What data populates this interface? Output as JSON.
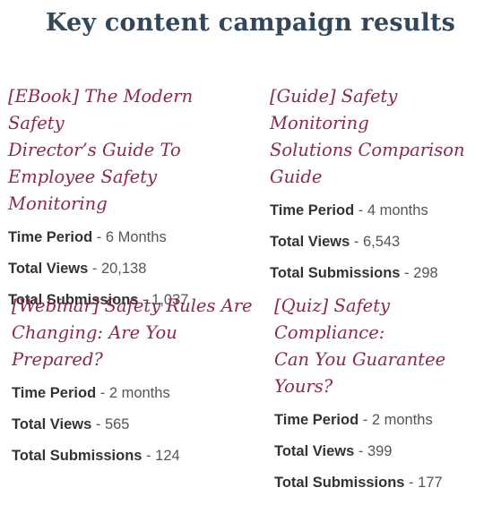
{
  "page": {
    "title": "Key content campaign results"
  },
  "cards": [
    {
      "title_lines": [
        "[EBook] The Modern Safety",
        "Director’s Guide To",
        "Employee Safety Monitoring"
      ],
      "stats": [
        {
          "label": "Time Period",
          "value": "6 Months"
        },
        {
          "label": "Total Views",
          "value": "20,138"
        },
        {
          "label": "Total Submissions",
          "value": "1,037"
        }
      ]
    },
    {
      "title_lines": [
        "[Guide] Safety Monitoring",
        "Solutions Comparison Guide"
      ],
      "stats": [
        {
          "label": "Time Period",
          "value": "4 months"
        },
        {
          "label": "Total Views",
          "value": "6,543"
        },
        {
          "label": "Total Submissions",
          "value": "298"
        }
      ]
    },
    {
      "title_lines": [
        "[Webinar] Safety Rules Are",
        "Changing: Are You Prepared?"
      ],
      "stats": [
        {
          "label": "Time Period",
          "value": "2 months"
        },
        {
          "label": "Total Views",
          "value": "565"
        },
        {
          "label": "Total Submissions",
          "value": "124"
        }
      ]
    },
    {
      "title_lines": [
        "[Quiz] Safety Compliance:",
        "Can You Guarantee Yours?"
      ],
      "stats": [
        {
          "label": "Time Period",
          "value": "2 months"
        },
        {
          "label": "Total Views",
          "value": "399"
        },
        {
          "label": "Total Submissions",
          "value": "177"
        }
      ]
    }
  ],
  "separator": " - ",
  "colors": {
    "heading": "#33475b",
    "card_title": "#8a2a4c",
    "label": "#333333",
    "value": "#555555"
  }
}
